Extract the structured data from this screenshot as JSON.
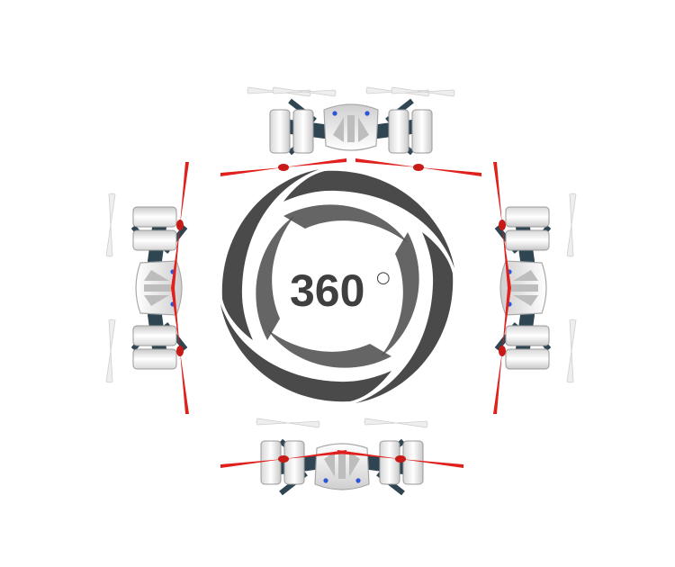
{
  "rotation_label": {
    "text": "360",
    "degree_symbol": "○"
  },
  "colors": {
    "background": "#ffffff",
    "swirl": "#4a4a4a",
    "text": "#3f3f3f",
    "propeller": "#e0201c",
    "propeller_light": "#eeeeee",
    "frame": "#2f4552",
    "body": "#f3f3f3",
    "body_shadow": "#d0d0d0",
    "led": "#2a57d6"
  },
  "drone_views": [
    {
      "view": "top"
    },
    {
      "view": "left"
    },
    {
      "view": "right"
    },
    {
      "view": "bottom"
    }
  ]
}
